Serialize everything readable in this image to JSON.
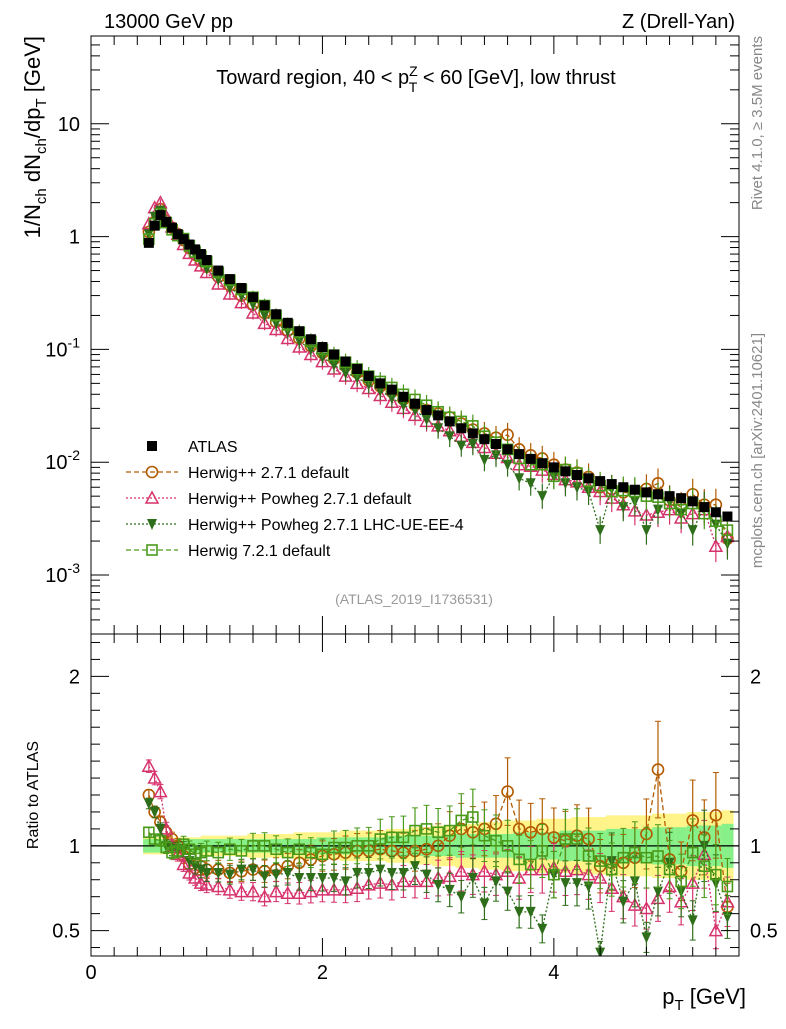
{
  "header": {
    "left": "13000 GeV pp",
    "right": "Z (Drell-Yan)"
  },
  "side": {
    "rivet": "Rivet 4.1.0, ≥ 3.5M events",
    "url": "mcplots.cern.ch [arXiv:2401.10621]"
  },
  "colors": {
    "atlas": "#000000",
    "herwigpp": "#b35a00",
    "powheg": "#d6336c",
    "powheg_ue": "#2e6e1a",
    "herwig7": "#4a9a1a",
    "band_inner": "#88f088",
    "band_outer": "#fff48a"
  },
  "chart_data": [
    {
      "type": "scatter",
      "title": "Toward region, 40 < p_T^Z < 60 [GeV], low thrust",
      "ylabel": "1/N_ch dN_ch/dp_T [GeV]",
      "yscale": "log",
      "ylim": [
        0.0003,
        60
      ],
      "xlim": [
        0,
        5.6
      ],
      "yticks": [
        0.001,
        0.01,
        0.1,
        1,
        10
      ],
      "ytick_labels": [
        "10^-3",
        "10^-2",
        "10^-1",
        "1",
        "10"
      ],
      "watermark": "(ATLAS_2019_I1736531)",
      "legend_position": "lower-left",
      "x": [
        0.5,
        0.55,
        0.6,
        0.65,
        0.7,
        0.75,
        0.8,
        0.85,
        0.9,
        0.95,
        1.0,
        1.1,
        1.2,
        1.3,
        1.4,
        1.5,
        1.6,
        1.7,
        1.8,
        1.9,
        2.0,
        2.1,
        2.2,
        2.3,
        2.4,
        2.5,
        2.6,
        2.7,
        2.8,
        2.9,
        3.0,
        3.1,
        3.2,
        3.3,
        3.4,
        3.5,
        3.6,
        3.7,
        3.8,
        3.9,
        4.0,
        4.1,
        4.2,
        4.3,
        4.4,
        4.5,
        4.6,
        4.7,
        4.8,
        4.9,
        5.0,
        5.1,
        5.2,
        5.3,
        5.4,
        5.5
      ],
      "series": [
        {
          "name": "ATLAS",
          "marker": "filled-square",
          "values": [
            0.88,
            1.25,
            1.55,
            1.35,
            1.2,
            1.05,
            0.95,
            0.85,
            0.77,
            0.7,
            0.62,
            0.5,
            0.42,
            0.35,
            0.29,
            0.245,
            0.205,
            0.172,
            0.145,
            0.123,
            0.105,
            0.09,
            0.078,
            0.067,
            0.058,
            0.05,
            0.044,
            0.038,
            0.033,
            0.029,
            0.026,
            0.023,
            0.02,
            0.018,
            0.016,
            0.0145,
            0.013,
            0.0118,
            0.0107,
            0.0098,
            0.009,
            0.0083,
            0.0077,
            0.0072,
            0.0068,
            0.0064,
            0.006,
            0.0057,
            0.0054,
            0.0052,
            0.005,
            0.0048,
            0.0045,
            0.004,
            0.0036,
            0.0033
          ]
        },
        {
          "name": "Herwig++ 2.7.1 default",
          "marker": "open-circle",
          "values": [
            1.1,
            1.35,
            1.75,
            1.38,
            1.2,
            1.05,
            0.93,
            0.79,
            0.69,
            0.61,
            0.54,
            0.44,
            0.37,
            0.3,
            0.25,
            0.21,
            0.175,
            0.147,
            0.125,
            0.107,
            0.093,
            0.082,
            0.071,
            0.062,
            0.053,
            0.047,
            0.042,
            0.036,
            0.032,
            0.029,
            0.027,
            0.025,
            0.022,
            0.0195,
            0.018,
            0.0165,
            0.0175,
            0.013,
            0.0115,
            0.0108,
            0.0095,
            0.0086,
            0.0081,
            0.0074,
            0.006,
            0.0058,
            0.0054,
            0.0053,
            0.0058,
            0.0065,
            0.0046,
            0.004,
            0.0052,
            0.0042,
            0.0042,
            0.0021
          ]
        },
        {
          "name": "Herwig++ Powheg 2.7.1 default",
          "marker": "open-triangle",
          "values": [
            1.3,
            1.8,
            2.0,
            1.5,
            1.22,
            1.05,
            0.85,
            0.71,
            0.62,
            0.55,
            0.48,
            0.38,
            0.31,
            0.26,
            0.21,
            0.17,
            0.15,
            0.125,
            0.105,
            0.09,
            0.078,
            0.067,
            0.058,
            0.05,
            0.045,
            0.039,
            0.034,
            0.03,
            0.026,
            0.023,
            0.021,
            0.019,
            0.017,
            0.015,
            0.0135,
            0.012,
            0.011,
            0.0095,
            0.0092,
            0.0085,
            0.0078,
            0.007,
            0.0067,
            0.006,
            0.0055,
            0.0048,
            0.0042,
            0.0037,
            0.0034,
            0.0036,
            0.0038,
            0.0032,
            0.0035,
            0.0038,
            0.0018,
            0.0022
          ]
        },
        {
          "name": "Herwig++ Powheg 2.7.1 LHC-UE-EE-4",
          "marker": "filled-triangle-down",
          "values": [
            1.05,
            1.5,
            1.7,
            1.35,
            1.18,
            1.03,
            0.93,
            0.77,
            0.68,
            0.6,
            0.52,
            0.42,
            0.35,
            0.3,
            0.25,
            0.2,
            0.17,
            0.145,
            0.118,
            0.1,
            0.085,
            0.073,
            0.062,
            0.056,
            0.049,
            0.043,
            0.037,
            0.032,
            0.029,
            0.024,
            0.02,
            0.017,
            0.014,
            0.0145,
            0.0105,
            0.0115,
            0.0095,
            0.0072,
            0.0065,
            0.005,
            0.0075,
            0.0065,
            0.006,
            0.0055,
            0.0025,
            0.0058,
            0.004,
            0.0045,
            0.0025,
            0.0038,
            0.0045,
            0.0035,
            0.0025,
            0.004,
            0.0028,
            0.0019
          ]
        },
        {
          "name": "Herwig 7.2.1 default",
          "marker": "open-square",
          "values": [
            0.95,
            1.3,
            1.6,
            1.33,
            1.15,
            1.02,
            0.96,
            0.83,
            0.73,
            0.67,
            0.6,
            0.48,
            0.41,
            0.34,
            0.29,
            0.245,
            0.2,
            0.165,
            0.142,
            0.118,
            0.1,
            0.089,
            0.077,
            0.067,
            0.058,
            0.052,
            0.046,
            0.04,
            0.036,
            0.032,
            0.028,
            0.025,
            0.023,
            0.021,
            0.017,
            0.015,
            0.013,
            0.0108,
            0.0095,
            0.0095,
            0.0075,
            0.0086,
            0.008,
            0.0068,
            0.0062,
            0.0055,
            0.0056,
            0.0055,
            0.005,
            0.0049,
            0.0043,
            0.0038,
            0.0043,
            0.0035,
            0.003,
            0.0025
          ]
        }
      ]
    },
    {
      "type": "scatter",
      "ylabel": "Ratio to ATLAS",
      "xlabel": "p_T [GeV]",
      "ylim": [
        0.35,
        2.25
      ],
      "xlim": [
        0,
        5.6
      ],
      "yticks": [
        0.5,
        1,
        2
      ],
      "xticks": [
        0,
        2,
        4
      ],
      "reference_line": 1,
      "band_inner_halfwidth": [
        0.04,
        0.04,
        0.04,
        0.04,
        0.04,
        0.04,
        0.04,
        0.04,
        0.04,
        0.04,
        0.04,
        0.04,
        0.04,
        0.04,
        0.04,
        0.04,
        0.04,
        0.04,
        0.04,
        0.04,
        0.05,
        0.05,
        0.05,
        0.05,
        0.05,
        0.05,
        0.06,
        0.06,
        0.06,
        0.06,
        0.06,
        0.06,
        0.07,
        0.07,
        0.07,
        0.07,
        0.07,
        0.08,
        0.08,
        0.08,
        0.08,
        0.09,
        0.09,
        0.09,
        0.09,
        0.1,
        0.1,
        0.1,
        0.1,
        0.11,
        0.11,
        0.11,
        0.12,
        0.12,
        0.12,
        0.13
      ],
      "band_outer_halfwidth": [
        0.05,
        0.05,
        0.05,
        0.05,
        0.05,
        0.05,
        0.05,
        0.05,
        0.05,
        0.05,
        0.06,
        0.06,
        0.06,
        0.06,
        0.07,
        0.07,
        0.07,
        0.07,
        0.08,
        0.08,
        0.08,
        0.08,
        0.09,
        0.09,
        0.09,
        0.09,
        0.1,
        0.1,
        0.11,
        0.11,
        0.12,
        0.12,
        0.13,
        0.13,
        0.14,
        0.14,
        0.15,
        0.15,
        0.15,
        0.16,
        0.16,
        0.16,
        0.17,
        0.17,
        0.17,
        0.18,
        0.18,
        0.18,
        0.18,
        0.19,
        0.19,
        0.19,
        0.2,
        0.2,
        0.2,
        0.21
      ],
      "series": [
        {
          "name": "Herwig++ 2.7.1 default",
          "values": [
            1.3,
            1.2,
            1.14,
            1.08,
            1.04,
            1.0,
            0.94,
            0.89,
            0.87,
            0.88,
            0.86,
            0.86,
            0.84,
            0.85,
            0.86,
            0.85,
            0.86,
            0.88,
            0.9,
            0.92,
            0.94,
            0.95,
            0.96,
            0.97,
            0.97,
            0.98,
            0.97,
            0.96,
            0.97,
            0.98,
            1.0,
            1.06,
            1.1,
            1.08,
            1.1,
            1.13,
            1.32,
            1.1,
            1.08,
            1.1,
            1.05,
            1.03,
            1.06,
            1.04,
            0.88,
            0.9,
            0.9,
            0.93,
            1.07,
            1.45,
            0.92,
            0.85,
            1.15,
            1.05,
            1.18,
            0.64
          ]
        },
        {
          "name": "Herwig++ Powheg 2.7.1 default",
          "values": [
            1.47,
            1.4,
            1.32,
            1.1,
            1.0,
            0.95,
            0.89,
            0.84,
            0.81,
            0.78,
            0.77,
            0.76,
            0.74,
            0.73,
            0.73,
            0.7,
            0.73,
            0.72,
            0.72,
            0.73,
            0.74,
            0.74,
            0.74,
            0.75,
            0.77,
            0.78,
            0.77,
            0.79,
            0.79,
            0.79,
            0.81,
            0.82,
            0.85,
            0.83,
            0.85,
            0.83,
            0.85,
            0.81,
            0.86,
            0.86,
            0.87,
            0.85,
            0.86,
            0.83,
            0.81,
            0.75,
            0.7,
            0.65,
            0.63,
            0.69,
            0.76,
            0.67,
            0.78,
            0.95,
            0.5,
            0.67
          ]
        },
        {
          "name": "Herwig++ Powheg 2.7.1 LHC-UE-EE-4",
          "values": [
            1.25,
            1.2,
            1.1,
            1.0,
            0.98,
            0.98,
            0.98,
            0.91,
            0.88,
            0.86,
            0.84,
            0.84,
            0.83,
            0.86,
            0.86,
            0.82,
            0.83,
            0.84,
            0.81,
            0.81,
            0.81,
            0.81,
            0.79,
            0.84,
            0.84,
            0.86,
            0.84,
            0.84,
            0.88,
            0.83,
            0.77,
            0.74,
            0.7,
            0.81,
            0.66,
            0.79,
            0.73,
            0.61,
            0.61,
            0.51,
            0.83,
            0.78,
            0.78,
            0.76,
            0.37,
            0.91,
            0.67,
            0.79,
            0.46,
            0.73,
            0.9,
            0.73,
            0.56,
            1.0,
            0.78,
            0.58
          ]
        },
        {
          "name": "Herwig 7.2.1 default",
          "values": [
            1.08,
            1.04,
            1.03,
            0.99,
            0.96,
            0.97,
            1.01,
            0.98,
            0.95,
            0.96,
            0.97,
            0.96,
            0.98,
            0.97,
            1.0,
            1.0,
            0.98,
            0.96,
            0.98,
            0.96,
            0.95,
            0.99,
            0.99,
            1.0,
            1.0,
            1.04,
            1.05,
            1.05,
            1.09,
            1.1,
            1.08,
            1.09,
            1.15,
            1.17,
            1.06,
            1.03,
            1.0,
            0.92,
            0.89,
            0.97,
            0.83,
            1.04,
            1.04,
            0.94,
            0.91,
            0.86,
            0.93,
            0.96,
            0.93,
            0.94,
            0.86,
            0.79,
            0.96,
            0.88,
            0.83,
            0.76
          ]
        }
      ]
    }
  ]
}
